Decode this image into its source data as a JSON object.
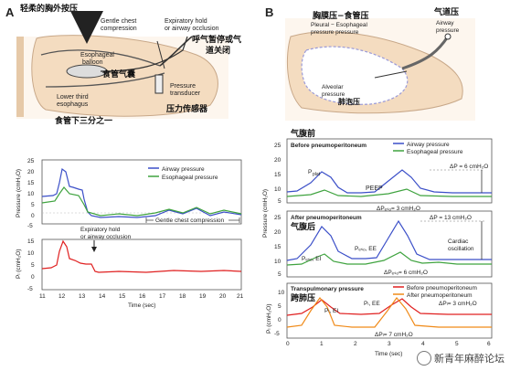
{
  "panelA": {
    "label": "A",
    "title_cn": "轻柔的胸外按压",
    "gentle": [
      "Gentle chest",
      "compression"
    ],
    "exp_hold": [
      "Expiratory hold",
      "or airway occlusion"
    ],
    "cn_exp_hold": [
      "呼气暂停或气",
      "道关闭"
    ],
    "balloon": [
      "Esophageal",
      "balloon"
    ],
    "cn_balloon": "食管气囊",
    "lower": [
      "Lower third",
      "esophagus"
    ],
    "cn_lower": "食管下三分之一",
    "transducer": [
      "Pressure",
      "transducer"
    ],
    "cn_transducer": "压力传感器",
    "chart1": {
      "ylabel": "Pressure (cmH₂O)",
      "yticks": [
        "25",
        "20",
        "15",
        "10",
        "5",
        "0",
        "-5"
      ],
      "legend": [
        "Airway pressure",
        "Esophageal pressure"
      ],
      "annot": [
        "Expiratory hold",
        "or airway occlusion"
      ],
      "gentle_label": "Gentle chest compression"
    },
    "chart2": {
      "ylabel": "Pₗ (cmH₂O)",
      "yticks": [
        "15",
        "10",
        "5",
        "0",
        "-5"
      ],
      "xticks": [
        "11",
        "12",
        "13",
        "14",
        "15",
        "16",
        "17",
        "18",
        "19",
        "20",
        "21"
      ],
      "xlabel": "Time (sec)"
    }
  },
  "panelB": {
    "label": "B",
    "cn_pleural": "胸膜压−食管压",
    "pleural": [
      "Pleural − Esophageal",
      "pressure  pressure"
    ],
    "cn_airway": "气道压",
    "airway": [
      "Airway",
      "pressure"
    ],
    "alveolar": [
      "Alveolar",
      "pressure"
    ],
    "cn_alveolar": "肺泡压",
    "cn_before": "气腹前",
    "before": "Before pneumoperitoneum",
    "legend1": [
      "Airway pressure",
      "Esophageal pressure"
    ],
    "pplat": "P",
    "pplat_sub": "plat",
    "peep": "PEEP",
    "dp1": "ΔP = 6 cmH₂O",
    "dpeso1": "ΔPₑₛₒ= 3 cmH₂O",
    "cn_after": "气腹后",
    "after": "After pneumoperitoneum",
    "dp2": "ΔP = 13 cmH₂O",
    "peso_ei": "Pₑₛₒ, EI",
    "peso_ee": "Pₑₛₒ, EE",
    "cardiac": [
      "Cardiac",
      "oscillation"
    ],
    "dpeso2": "ΔPₑₛₒ= 6 cmH₂O",
    "trans": "Transpulmonary pressure",
    "cn_trans": "跨肺压",
    "legend3": [
      "Before pneumoperitoneum",
      "After pneumoperitoneum"
    ],
    "pl_ei": "Pₗ, EI",
    "pl_ee": "Pₗ, EE",
    "dpl1": "ΔPₗ= 3 cmH₂O",
    "dpl2": "ΔPₗ= 7 cmH₂O",
    "yl1": "Pressure (cmH₂O)",
    "yl3": "Pₗ (cmH₂O)",
    "yt1": [
      "25",
      "20",
      "15",
      "10",
      "5"
    ],
    "yt2": [
      "25",
      "20",
      "15",
      "10",
      "5"
    ],
    "yt3": [
      "10",
      "5",
      "0",
      "-5"
    ],
    "xt": [
      "0",
      "1",
      "2",
      "3",
      "4",
      "5",
      "6"
    ],
    "xlabel": "Time (sec)"
  },
  "watermark": "新青年麻醉论坛",
  "colors": {
    "airway": "#3b4fc8",
    "eso": "#3fa33f",
    "red": "#e02020",
    "orange": "#f08a18",
    "body": "#f4dcc0"
  }
}
